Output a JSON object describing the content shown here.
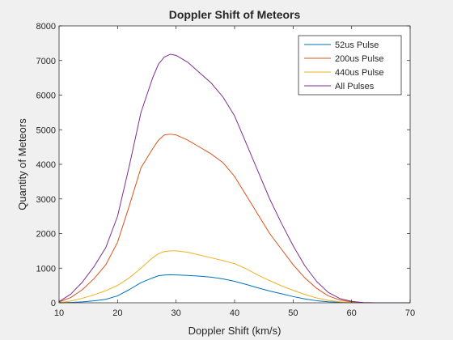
{
  "chart_data": {
    "type": "line",
    "title": "Doppler Shift of Meteors",
    "xlabel": "Doppler Shift (km/s)",
    "ylabel": "Quantity of Meteors",
    "xlim": [
      10,
      70
    ],
    "ylim": [
      0,
      8000
    ],
    "xticks": [
      10,
      20,
      30,
      40,
      50,
      60,
      70
    ],
    "yticks": [
      0,
      1000,
      2000,
      3000,
      4000,
      5000,
      6000,
      7000,
      8000
    ],
    "grid": false,
    "legend_position": "top-right",
    "series": [
      {
        "name": "52us Pulse",
        "color": "#0072BD",
        "x": [
          10,
          12,
          14,
          16,
          18,
          20,
          22,
          24,
          26,
          27,
          28,
          29,
          30,
          32,
          34,
          36,
          38,
          40,
          42,
          44,
          46,
          48,
          50,
          52,
          54,
          56,
          58,
          60,
          62,
          64,
          66,
          68,
          70
        ],
        "y": [
          0,
          10,
          25,
          55,
          100,
          200,
          380,
          580,
          720,
          780,
          800,
          810,
          805,
          790,
          770,
          740,
          690,
          620,
          530,
          430,
          340,
          260,
          180,
          110,
          60,
          30,
          15,
          5,
          0,
          0,
          0,
          0,
          0
        ]
      },
      {
        "name": "200us Pulse",
        "color": "#D95319",
        "x": [
          10,
          12,
          14,
          16,
          18,
          20,
          22,
          24,
          26,
          27,
          28,
          29,
          30,
          32,
          34,
          36,
          38,
          40,
          42,
          44,
          46,
          48,
          50,
          52,
          54,
          56,
          58,
          60,
          62,
          64,
          66,
          68,
          70
        ],
        "y": [
          20,
          150,
          380,
          700,
          1100,
          1750,
          2800,
          3900,
          4450,
          4700,
          4850,
          4870,
          4850,
          4700,
          4500,
          4300,
          4050,
          3650,
          3100,
          2550,
          2000,
          1550,
          1100,
          720,
          420,
          200,
          80,
          25,
          5,
          0,
          0,
          0,
          0
        ]
      },
      {
        "name": "440us Pulse",
        "color": "#EDB120",
        "x": [
          10,
          12,
          14,
          16,
          18,
          20,
          22,
          24,
          26,
          27,
          28,
          29,
          30,
          32,
          34,
          36,
          38,
          40,
          42,
          44,
          46,
          48,
          50,
          52,
          54,
          56,
          58,
          60,
          62,
          64,
          66,
          68,
          70
        ],
        "y": [
          5,
          50,
          130,
          230,
          350,
          500,
          720,
          1000,
          1300,
          1420,
          1480,
          1500,
          1500,
          1460,
          1380,
          1300,
          1220,
          1130,
          980,
          800,
          640,
          490,
          360,
          240,
          140,
          70,
          30,
          10,
          0,
          0,
          0,
          0,
          0
        ]
      },
      {
        "name": "All Pulses",
        "color": "#7E2F8E",
        "x": [
          10,
          12,
          14,
          16,
          18,
          20,
          22,
          24,
          26,
          27,
          28,
          29,
          30,
          32,
          34,
          36,
          38,
          40,
          42,
          44,
          46,
          48,
          50,
          52,
          54,
          56,
          58,
          60,
          62,
          64,
          66,
          68,
          70
        ],
        "y": [
          30,
          250,
          600,
          1050,
          1600,
          2500,
          3950,
          5500,
          6500,
          6900,
          7100,
          7180,
          7150,
          6950,
          6650,
          6350,
          5950,
          5400,
          4600,
          3800,
          3000,
          2300,
          1650,
          1070,
          620,
          300,
          120,
          40,
          5,
          0,
          0,
          0,
          0
        ]
      }
    ]
  }
}
